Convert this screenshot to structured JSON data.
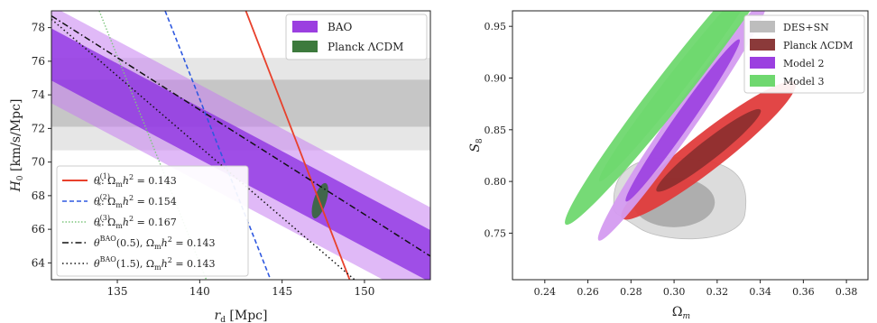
{
  "chart_data": [
    {
      "type": "area",
      "xlabel": "r_d [Mpc]",
      "ylabel": "H_0 [km/s/Mpc]",
      "xlim": [
        131,
        154
      ],
      "ylim": [
        63,
        79
      ],
      "xticks": [
        135,
        140,
        145,
        150
      ],
      "yticks": [
        64,
        66,
        68,
        70,
        72,
        74,
        76,
        78
      ],
      "legend_top": {
        "placement": "top-right",
        "entries": [
          {
            "name": "BAO",
            "color": "#9b3fe0"
          },
          {
            "name": "Planck ΛCDM",
            "color": "#3d7a3d"
          }
        ]
      },
      "legend_bottom": {
        "placement": "bottom-left",
        "entries": [
          {
            "label": "θ*(1): Ω_m h² = 0.143",
            "color": "#e8412c",
            "style": "solid"
          },
          {
            "label": "θ*(2): Ω_m h² = 0.154",
            "color": "#2f59e0",
            "style": "dashed"
          },
          {
            "label": "θ*(3): Ω_m h² = 0.167",
            "color": "#7fc67f",
            "style": "dotted"
          },
          {
            "label": "θ^BAO(0.5), Ω_m h² = 0.143",
            "color": "#111111",
            "style": "dashdot"
          },
          {
            "label": "θ^BAO(1.5), Ω_m h² = 0.143",
            "color": "#111111",
            "style": "dotted"
          }
        ]
      },
      "h0_band": {
        "inner": [
          72.1,
          74.9
        ],
        "outer": [
          70.7,
          76.2
        ]
      },
      "bao_band": {
        "x": [
          131,
          154
        ],
        "center": [
          76.4,
          64.4
        ],
        "inner_halfwidth": 1.55,
        "outer_halfwidth": 2.9
      },
      "lines": [
        {
          "name": "theta1",
          "x": [
            142.8,
            149.1
          ],
          "y": [
            79,
            63
          ]
        },
        {
          "name": "theta2",
          "x": [
            137.9,
            144.3
          ],
          "y": [
            79,
            63
          ]
        },
        {
          "name": "theta3",
          "x": [
            133.9,
            140.4
          ],
          "y": [
            79,
            63
          ]
        },
        {
          "name": "bao05",
          "x": [
            131,
            154
          ],
          "y": [
            78.7,
            64.4
          ]
        },
        {
          "name": "bao15",
          "x": [
            131,
            149.4
          ],
          "y": [
            78.5,
            63
          ]
        }
      ],
      "planck_ellipse": {
        "center": [
          147.3,
          67.7
        ],
        "semi_major_h0": 1.1,
        "semi_minor_rd": 0.38
      }
    },
    {
      "type": "scatter",
      "xlabel": "Ω_m",
      "ylabel": "S_8",
      "xlim": [
        0.225,
        0.39
      ],
      "ylim": [
        0.705,
        0.965
      ],
      "xticks": [
        0.24,
        0.26,
        0.28,
        0.3,
        0.32,
        0.34,
        0.36,
        0.38
      ],
      "yticks": [
        0.75,
        0.8,
        0.85,
        0.9,
        0.95
      ],
      "legend": {
        "placement": "top-right",
        "entries": [
          {
            "name": "DES+SN",
            "color": "#bdbdbd"
          },
          {
            "name": "Planck ΛCDM",
            "color": "#8b3a3a"
          },
          {
            "name": "Model 2",
            "color": "#9b3fe0"
          },
          {
            "name": "Model 3",
            "color": "#6fd86f"
          }
        ]
      },
      "contours": [
        {
          "name": "DES+SN",
          "center": [
            0.302,
            0.785
          ],
          "outer_radii": [
            0.03,
            0.038
          ],
          "inner_radii": [
            0.019,
            0.024
          ],
          "colors": [
            "#d9d9d9",
            "#aaaaaa"
          ]
        },
        {
          "name": "Planck ΛCDM",
          "center": [
            0.316,
            0.83
          ],
          "angle": 38,
          "outer_radii": [
            0.03,
            0.011
          ],
          "inner_radii": [
            0.018,
            0.006
          ],
          "colors": [
            "#e03c3c",
            "#8b2e2e"
          ]
        },
        {
          "name": "Model 2",
          "center": [
            0.304,
            0.859
          ],
          "angle": 55,
          "outer_radii": [
            0.04,
            0.008
          ],
          "inner_radii": [
            0.027,
            0.005
          ],
          "colors": [
            "#d49bf0",
            "#9b3fe0"
          ]
        },
        {
          "name": "Model 3",
          "center": [
            0.302,
            0.898
          ],
          "angle": 52,
          "outer_radii": [
            0.05,
            0.01
          ],
          "inner_radii": [
            0.035,
            0.006
          ],
          "colors": [
            "#6fd86f",
            "#6fd86f"
          ]
        }
      ]
    }
  ]
}
